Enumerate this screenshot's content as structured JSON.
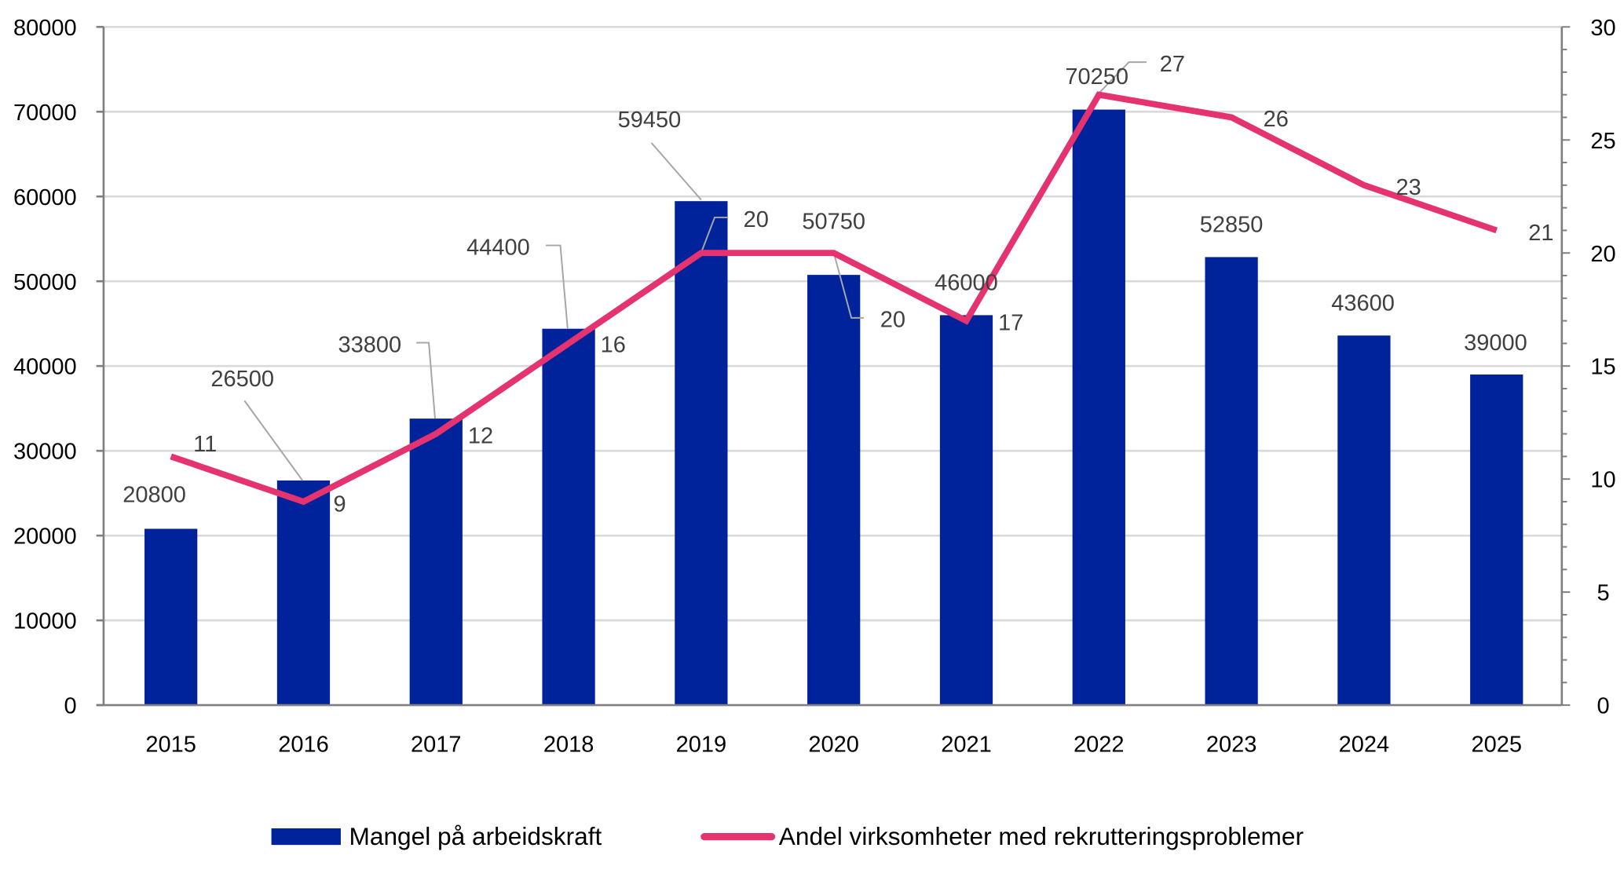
{
  "chart_data": {
    "type": "bar+line",
    "categories": [
      "2015",
      "2016",
      "2017",
      "2018",
      "2019",
      "2020",
      "2021",
      "2022",
      "2023",
      "2024",
      "2025"
    ],
    "series": [
      {
        "name": "Mangel på arbeidskraft",
        "type": "bar",
        "axis": "left",
        "color": "#00239C",
        "values": [
          20800,
          26500,
          33800,
          44400,
          59450,
          50750,
          46000,
          70250,
          52850,
          43600,
          39000
        ]
      },
      {
        "name": "Andel virksomheter med rekrutteringsproblemer",
        "type": "line",
        "axis": "right",
        "color": "#E5336F",
        "values": [
          11,
          9,
          12,
          16,
          20,
          20,
          17,
          27,
          26,
          23,
          21
        ]
      }
    ],
    "y_left": {
      "range": [
        0,
        80000
      ],
      "ticks": [
        "0",
        "10000",
        "20000",
        "30000",
        "40000",
        "50000",
        "60000",
        "70000",
        "80000"
      ]
    },
    "y_right": {
      "range": [
        0,
        30
      ],
      "ticks": [
        "0",
        "5",
        "10",
        "15",
        "20",
        "25",
        "30"
      ]
    },
    "grid": true,
    "legend": "bottom",
    "data_labels": true
  }
}
